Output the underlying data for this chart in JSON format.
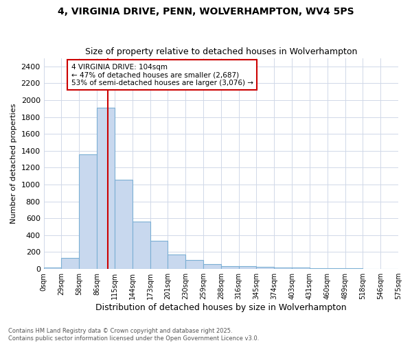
{
  "title1": "4, VIRGINIA DRIVE, PENN, WOLVERHAMPTON, WV4 5PS",
  "title2": "Size of property relative to detached houses in Wolverhampton",
  "xlabel": "Distribution of detached houses by size in Wolverhampton",
  "ylabel": "Number of detached properties",
  "annotation_line1": "4 VIRGINIA DRIVE: 104sqm",
  "annotation_line2": "← 47% of detached houses are smaller (2,687)",
  "annotation_line3": "53% of semi-detached houses are larger (3,076) →",
  "bin_labels": [
    "0sqm",
    "29sqm",
    "58sqm",
    "86sqm",
    "115sqm",
    "144sqm",
    "173sqm",
    "201sqm",
    "230sqm",
    "259sqm",
    "288sqm",
    "316sqm",
    "345sqm",
    "374sqm",
    "403sqm",
    "431sqm",
    "460sqm",
    "489sqm",
    "518sqm",
    "546sqm",
    "575sqm"
  ],
  "counts": [
    15,
    130,
    1360,
    1910,
    1055,
    560,
    335,
    170,
    110,
    60,
    35,
    30,
    25,
    20,
    15,
    8,
    5,
    5,
    3,
    2
  ],
  "bar_color": "#c8d8ee",
  "bar_edge_color": "#7bafd4",
  "grid_color": "#d0d8e8",
  "bg_color": "#ffffff",
  "vline_color": "#cc0000",
  "vline_bin_index": 3.67,
  "annotation_box_edge_color": "#cc0000",
  "ylim": [
    0,
    2500
  ],
  "yticks": [
    0,
    200,
    400,
    600,
    800,
    1000,
    1200,
    1400,
    1600,
    1800,
    2000,
    2200,
    2400
  ],
  "footer_line1": "Contains HM Land Registry data © Crown copyright and database right 2025.",
  "footer_line2": "Contains public sector information licensed under the Open Government Licence v3.0."
}
